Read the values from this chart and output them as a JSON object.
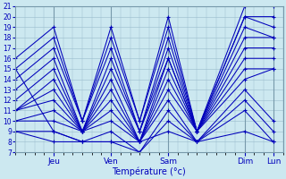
{
  "xlabel": "Température (°c)",
  "background_color": "#cce8f0",
  "grid_color": "#99bbcc",
  "line_color": "#0000bb",
  "marker": "+",
  "ylim": [
    7,
    21
  ],
  "yticks": [
    7,
    8,
    9,
    10,
    11,
    12,
    13,
    14,
    15,
    16,
    17,
    18,
    19,
    20,
    21
  ],
  "xlim": [
    0,
    56
  ],
  "xtick_positions": [
    8,
    20,
    32,
    48,
    54
  ],
  "xtick_labels": [
    "Jeu",
    "Ven",
    "Sam",
    "Dim",
    "Lun"
  ],
  "day_vlines": [
    8,
    20,
    32,
    48,
    54
  ],
  "series": [
    [
      16,
      19,
      10,
      19,
      10,
      20,
      9,
      21,
      21
    ],
    [
      15,
      18,
      10,
      18,
      10,
      19,
      9,
      20,
      20
    ],
    [
      14,
      17,
      10,
      17,
      9,
      18,
      9,
      20,
      19
    ],
    [
      13,
      16,
      9,
      16,
      9,
      17,
      9,
      19,
      18
    ],
    [
      12,
      15,
      9,
      15,
      9,
      16,
      9,
      18,
      18
    ],
    [
      11,
      14,
      9,
      14,
      8,
      16,
      9,
      17,
      17
    ],
    [
      11,
      13,
      9,
      13,
      8,
      15,
      9,
      16,
      16
    ],
    [
      11,
      12,
      9,
      12,
      8,
      14,
      9,
      15,
      15
    ],
    [
      10,
      11,
      9,
      11,
      8,
      13,
      9,
      14,
      15
    ],
    [
      10,
      10,
      9,
      10,
      8,
      12,
      8,
      13,
      10
    ],
    [
      9,
      9,
      8,
      9,
      7,
      11,
      8,
      12,
      9
    ],
    [
      9,
      8,
      8,
      8,
      7,
      10,
      8,
      11,
      8
    ],
    [
      15,
      9,
      8,
      8,
      8,
      9,
      8,
      9,
      8
    ]
  ],
  "x_points": [
    0,
    8,
    14,
    20,
    26,
    32,
    38,
    48,
    54
  ]
}
